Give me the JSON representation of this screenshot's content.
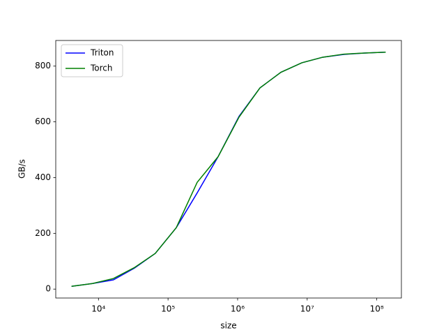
{
  "chart_data": {
    "type": "line",
    "xlabel": "size",
    "ylabel": "GB/s",
    "x": [
      4096,
      8192,
      16384,
      32768,
      65536,
      131072,
      262144,
      524288,
      1048576,
      2097152,
      4194304,
      8388608,
      16777216,
      33554432,
      67108864,
      134217728
    ],
    "series": [
      {
        "name": "Triton",
        "color": "#0000ff",
        "values": [
          10,
          20,
          33,
          75,
          128,
          220,
          345,
          475,
          620,
          722,
          778,
          812,
          832,
          842,
          847,
          850
        ]
      },
      {
        "name": "Torch",
        "color": "#008000",
        "values": [
          10,
          20,
          38,
          77,
          128,
          220,
          383,
          475,
          617,
          722,
          778,
          812,
          832,
          843,
          847,
          850
        ]
      }
    ],
    "xscale": "log",
    "xlim": [
      2432,
      226000000
    ],
    "xticks": [
      {
        "value": 10000,
        "label": "10⁴"
      },
      {
        "value": 100000,
        "label": "10⁵"
      },
      {
        "value": 1000000,
        "label": "10⁶"
      },
      {
        "value": 10000000,
        "label": "10⁷"
      },
      {
        "value": 100000000,
        "label": "10⁸"
      }
    ],
    "ylim": [
      -32,
      892
    ],
    "yticks": [
      0,
      200,
      400,
      600,
      800
    ],
    "legend": "upper left"
  }
}
